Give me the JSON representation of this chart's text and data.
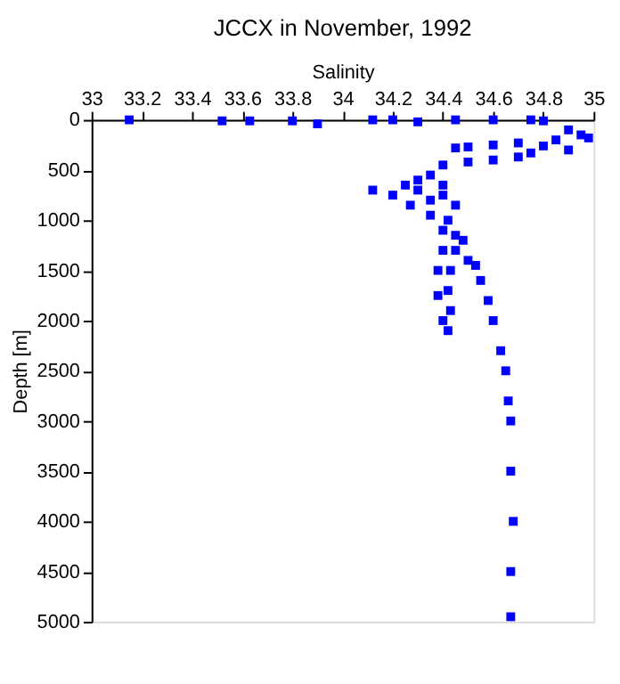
{
  "chart_data": {
    "type": "scatter",
    "title": "JCCX in November, 1992",
    "xlabel": "Salinity",
    "ylabel": "Depth [m]",
    "xlim": [
      33,
      35
    ],
    "xticks": [
      33,
      33.2,
      33.4,
      33.6,
      33.8,
      34,
      34.2,
      34.4,
      34.6,
      34.8,
      35
    ],
    "ylim": [
      5000,
      0
    ],
    "yticks": [
      0,
      500,
      1000,
      1500,
      2000,
      2500,
      3000,
      3500,
      4000,
      4500,
      5000
    ],
    "grid": false,
    "marker": "square",
    "series": [
      {
        "color": "#0000ff",
        "x": [
          33.15,
          33.52,
          33.63,
          33.8,
          33.9,
          34.12,
          34.2,
          34.3,
          34.45,
          34.6,
          34.75,
          34.8,
          34.9,
          34.95,
          34.98,
          34.85,
          34.7,
          34.5,
          34.45,
          34.6,
          34.8,
          34.9,
          34.75,
          34.6,
          34.7,
          34.5,
          34.4,
          34.35,
          34.3,
          34.25,
          34.12,
          34.2,
          34.3,
          34.4,
          34.35,
          34.4,
          34.45,
          34.27,
          34.35,
          34.42,
          34.4,
          34.45,
          34.48,
          34.4,
          34.45,
          34.53,
          34.5,
          34.38,
          34.43,
          34.55,
          34.42,
          34.38,
          34.58,
          34.43,
          34.4,
          34.6,
          34.42,
          34.63,
          34.65,
          34.66,
          34.67,
          34.67,
          34.68,
          34.67,
          34.67
        ],
        "values": [
          0,
          10,
          10,
          10,
          40,
          0,
          0,
          20,
          0,
          0,
          0,
          10,
          100,
          150,
          180,
          200,
          230,
          270,
          280,
          250,
          260,
          300,
          330,
          400,
          370,
          420,
          450,
          550,
          600,
          650,
          700,
          750,
          700,
          650,
          800,
          750,
          850,
          850,
          950,
          1000,
          1100,
          1150,
          1200,
          1300,
          1300,
          1450,
          1400,
          1500,
          1500,
          1600,
          1700,
          1750,
          1800,
          1900,
          2000,
          2000,
          2100,
          2300,
          2500,
          2800,
          3000,
          3500,
          4000,
          4500,
          4950
        ]
      }
    ]
  }
}
